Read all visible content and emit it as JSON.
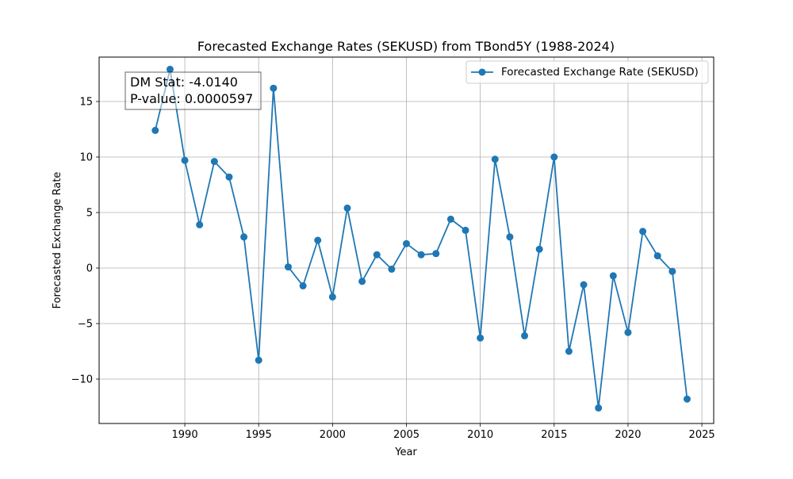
{
  "chart_data": {
    "type": "line",
    "title": "Forecasted Exchange Rates (SEKUSD) from TBond5Y (1988-2024)",
    "xlabel": "Year",
    "ylabel": "Forecasted Exchange Rate",
    "xlim": [
      1984.2,
      2025.8
    ],
    "ylim": [
      -14.0,
      19.0
    ],
    "x_ticks": [
      1990,
      1995,
      2000,
      2005,
      2010,
      2015,
      2020,
      2025
    ],
    "y_ticks": [
      -10,
      -5,
      0,
      5,
      10,
      15
    ],
    "grid": true,
    "legend_position": "top-right",
    "series": [
      {
        "name": "Forecasted Exchange Rate (SEKUSD)",
        "color": "#1f77b4",
        "marker": "circle",
        "x": [
          1988,
          1989,
          1990,
          1991,
          1992,
          1993,
          1994,
          1995,
          1996,
          1997,
          1998,
          1999,
          2000,
          2001,
          2002,
          2003,
          2004,
          2005,
          2006,
          2007,
          2008,
          2009,
          2010,
          2011,
          2012,
          2013,
          2014,
          2015,
          2016,
          2017,
          2018,
          2019,
          2020,
          2021,
          2022,
          2023,
          2024
        ],
        "y": [
          12.4,
          17.9,
          9.7,
          3.9,
          9.6,
          8.2,
          2.8,
          -8.3,
          16.2,
          0.1,
          -1.6,
          2.5,
          -2.6,
          5.4,
          -1.2,
          1.2,
          -0.1,
          2.2,
          1.2,
          1.3,
          4.4,
          3.4,
          -6.3,
          9.8,
          2.8,
          -6.1,
          1.7,
          10.0,
          -7.5,
          -1.5,
          -12.6,
          -0.7,
          -5.8,
          3.3,
          1.1,
          -0.3,
          -11.8
        ]
      }
    ],
    "annotation": {
      "line1": "DM Stat: -4.0140",
      "line2": "P-value: 0.0000597"
    }
  }
}
